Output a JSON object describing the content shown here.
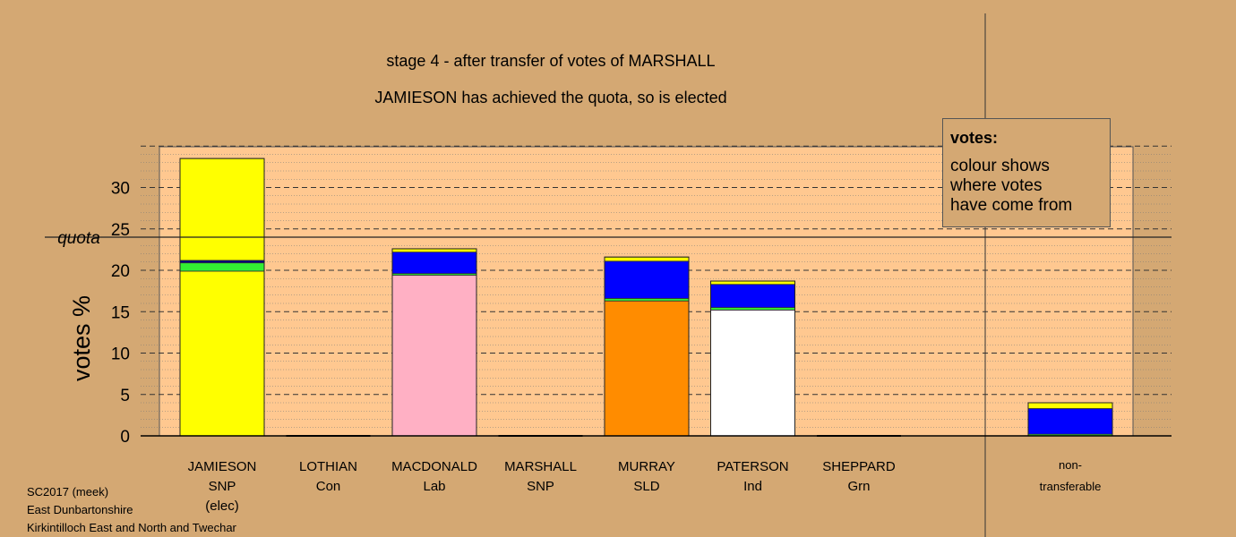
{
  "chart_data": {
    "type": "bar",
    "title": "stage 4 - after transfer of votes of MARSHALL",
    "subtitle": "JAMIESON has achieved the quota, so is elected",
    "ylabel": "votes %",
    "ylim": [
      0,
      35
    ],
    "yticks": [
      0,
      5,
      10,
      15,
      20,
      25,
      30
    ],
    "quota": 24,
    "quota_label": "quota",
    "candidates": [
      {
        "name": "JAMIESON",
        "party": "SNP",
        "note": "(elec)",
        "segments": [
          {
            "value": 19.9,
            "color": "#ffff00"
          },
          {
            "value": 1.0,
            "color": "#33ee33"
          },
          {
            "value": 0.3,
            "color": "#000080"
          },
          {
            "value": 12.3,
            "color": "#ffff00"
          }
        ]
      },
      {
        "name": "LOTHIAN",
        "party": "Con",
        "note": "",
        "segments": []
      },
      {
        "name": "MACDONALD",
        "party": "Lab",
        "note": "",
        "segments": [
          {
            "value": 19.4,
            "color": "#ffb0c4"
          },
          {
            "value": 0.2,
            "color": "#33ee33"
          },
          {
            "value": 2.6,
            "color": "#0000ff"
          },
          {
            "value": 0.4,
            "color": "#ffff00"
          }
        ]
      },
      {
        "name": "MARSHALL",
        "party": "SNP",
        "note": "",
        "segments": []
      },
      {
        "name": "MURRAY",
        "party": "SLD",
        "note": "",
        "segments": [
          {
            "value": 16.3,
            "color": "#ff8c00"
          },
          {
            "value": 0.3,
            "color": "#33ee33"
          },
          {
            "value": 4.5,
            "color": "#0000ff"
          },
          {
            "value": 0.5,
            "color": "#ffff00"
          }
        ]
      },
      {
        "name": "PATERSON",
        "party": "Ind",
        "note": "",
        "segments": [
          {
            "value": 15.2,
            "color": "#ffffff"
          },
          {
            "value": 0.3,
            "color": "#33ee33"
          },
          {
            "value": 2.8,
            "color": "#0000ff"
          },
          {
            "value": 0.4,
            "color": "#ffff00"
          }
        ]
      },
      {
        "name": "SHEPPARD",
        "party": "Grn",
        "note": "",
        "segments": []
      }
    ],
    "nontransferable": {
      "label_line1": "non-",
      "label_line2": "transferable",
      "segments": [
        {
          "value": 0.2,
          "color": "#33ee33"
        },
        {
          "value": 3.1,
          "color": "#0000ff"
        },
        {
          "value": 0.7,
          "color": "#ffff00"
        }
      ]
    },
    "grid": true,
    "plot_bg": "#ffc890",
    "page_bg": "#d4a873"
  },
  "legend": {
    "title": "votes:",
    "line1": "colour shows",
    "line2": "where votes",
    "line3": "have come from"
  },
  "footer": {
    "line1": "SC2017 (meek)",
    "line2": "East Dunbartonshire",
    "line3": "Kirkintilloch East and North and Twechar"
  }
}
